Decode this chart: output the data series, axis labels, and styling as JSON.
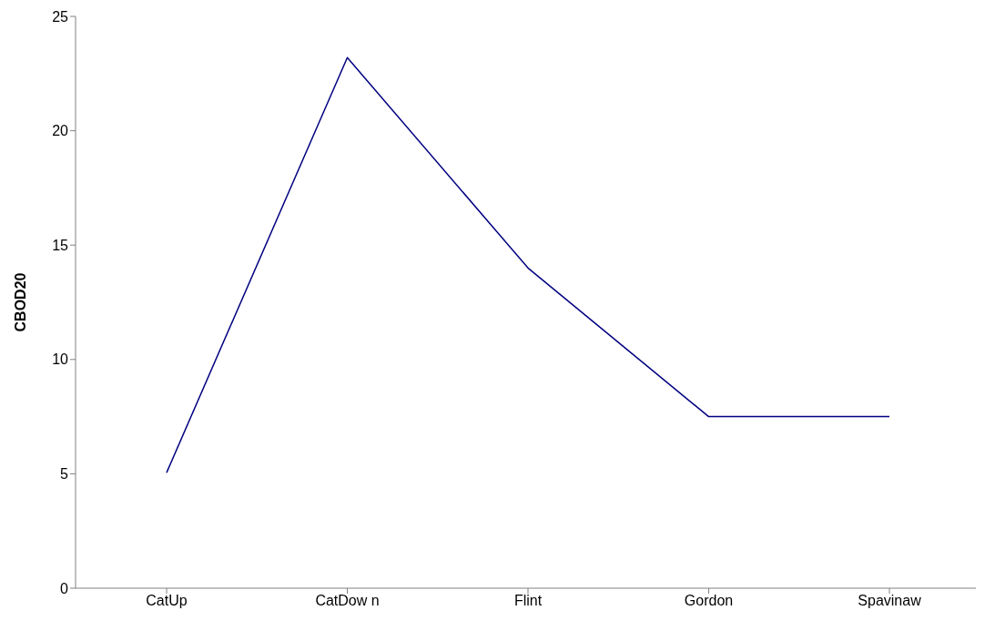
{
  "chart_data": {
    "type": "line",
    "ylabel": "CBOD20",
    "categories": [
      "CatUp",
      "CatDow n",
      "Flint",
      "Gordon",
      "Spavinaw"
    ],
    "series": [
      {
        "color": "#000080",
        "values": [
          5.05,
          23.2,
          14.0,
          7.5,
          7.5
        ]
      }
    ],
    "ylim": [
      0,
      25
    ],
    "yticks": [
      0,
      5,
      10,
      15,
      20,
      25
    ],
    "grid": false,
    "legend": false,
    "marker": "none",
    "line_style": "solid"
  }
}
